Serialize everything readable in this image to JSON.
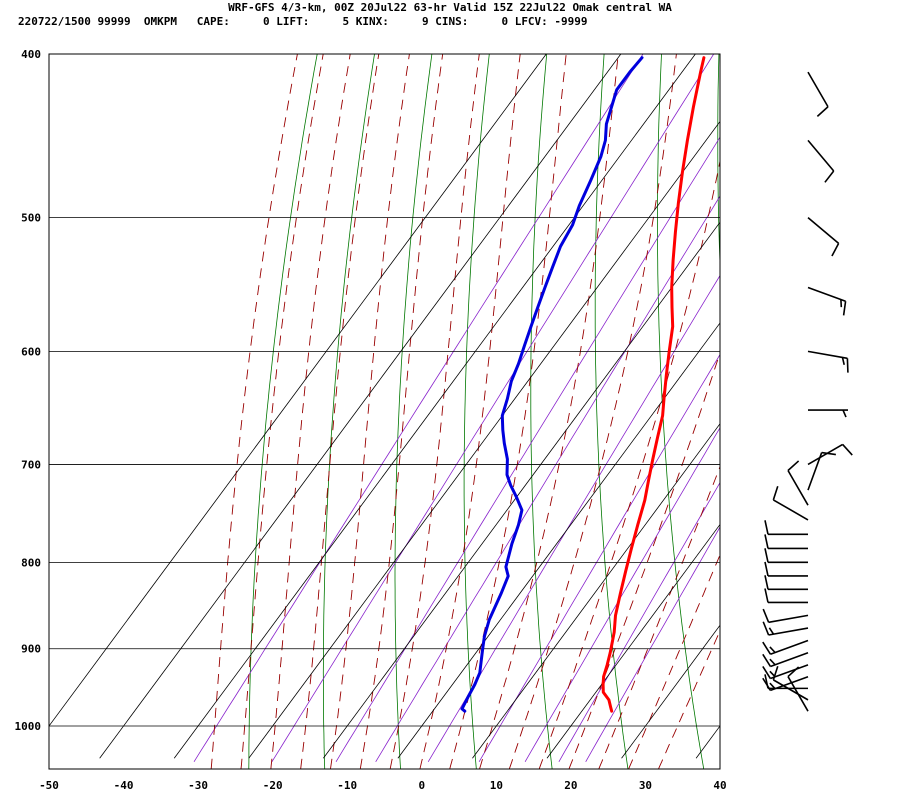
{
  "header": {
    "title": "WRF-GFS 4/3-km, 00Z 20Jul22 63-hr Valid 15Z 22Jul22 Omak central WA",
    "info": "220722/1500 99999  OMKPM   CAPE:     0 LIFT:     5 KINX:     9 CINS:     0 LFCV: -9999"
  },
  "chart_data": {
    "type": "line",
    "title": "WRF-GFS 4/3-km, 00Z 20Jul22 63-hr Valid 15Z 22Jul22 Omak central WA",
    "x_ticks": [
      -50,
      -40,
      -30,
      -20,
      -10,
      0,
      10,
      20,
      30,
      40
    ],
    "y_ticks": [
      400,
      500,
      600,
      700,
      800,
      900,
      1000
    ],
    "xlim": [
      -50,
      40
    ],
    "ylim": [
      1040,
      400
    ],
    "y_scale": "log",
    "grid": true,
    "colors": {
      "temperature": "#ff0000",
      "dewpoint": "#0000dd",
      "dry_adiabat": "#007700",
      "moist_adiabat": "#990000",
      "mixing_ratio": "#8822cc",
      "grid": "#000000",
      "wind": "#000000"
    },
    "series": [
      {
        "key": "temperature",
        "points": [
          [
            24,
            980
          ],
          [
            23.5,
            975
          ],
          [
            22.5,
            965
          ],
          [
            21,
            955
          ],
          [
            20.2,
            945
          ],
          [
            19.5,
            935
          ],
          [
            18.8,
            920
          ],
          [
            18,
            905
          ],
          [
            16.5,
            880
          ],
          [
            15,
            860
          ],
          [
            13.5,
            835
          ],
          [
            12,
            810
          ],
          [
            10.5,
            785
          ],
          [
            9,
            760
          ],
          [
            7.5,
            735
          ],
          [
            6,
            715
          ],
          [
            4.5,
            695
          ],
          [
            3,
            675
          ],
          [
            1.5,
            655
          ],
          [
            0,
            640
          ],
          [
            -2,
            620
          ],
          [
            -4,
            600
          ],
          [
            -6,
            580
          ],
          [
            -8,
            565
          ],
          [
            -10,
            550
          ],
          [
            -12.5,
            530
          ],
          [
            -15,
            510
          ],
          [
            -17.5,
            490
          ],
          [
            -20,
            470
          ],
          [
            -22.5,
            450
          ],
          [
            -25,
            430
          ],
          [
            -27.5,
            410
          ],
          [
            -28.5,
            402
          ]
        ]
      },
      {
        "key": "dewpoint",
        "points": [
          [
            4.3,
            980
          ],
          [
            3.7,
            977
          ],
          [
            3.3,
            960
          ],
          [
            3,
            945
          ],
          [
            2.5,
            930
          ],
          [
            1.5,
            915
          ],
          [
            0.5,
            900
          ],
          [
            -0.5,
            885
          ],
          [
            -1.5,
            865
          ],
          [
            -2.5,
            835
          ],
          [
            -3.3,
            815
          ],
          [
            -4.5,
            805
          ],
          [
            -6,
            780
          ],
          [
            -7,
            760
          ],
          [
            -8,
            745
          ],
          [
            -10,
            732
          ],
          [
            -12,
            720
          ],
          [
            -13.5,
            710
          ],
          [
            -15,
            695
          ],
          [
            -17,
            680
          ],
          [
            -18.5,
            668
          ],
          [
            -20,
            655
          ],
          [
            -21,
            640
          ],
          [
            -22.2,
            625
          ],
          [
            -23,
            610
          ],
          [
            -24,
            595
          ],
          [
            -25,
            580
          ],
          [
            -26,
            565
          ],
          [
            -27,
            550
          ],
          [
            -28,
            535
          ],
          [
            -29,
            520
          ],
          [
            -29.5,
            505
          ],
          [
            -30.5,
            492
          ],
          [
            -31.5,
            475
          ],
          [
            -32.5,
            460
          ],
          [
            -33.5,
            450
          ],
          [
            -35,
            440
          ],
          [
            -37,
            420
          ],
          [
            -37,
            410
          ],
          [
            -36.8,
            402
          ]
        ]
      }
    ],
    "wind_barbs": [
      {
        "p": 980,
        "dir": 330,
        "spd": 10
      },
      {
        "p": 965,
        "dir": 300,
        "spd": 10
      },
      {
        "p": 950,
        "dir": 270,
        "spd": 10
      },
      {
        "p": 935,
        "dir": 250,
        "spd": 15
      },
      {
        "p": 920,
        "dir": 250,
        "spd": 15
      },
      {
        "p": 905,
        "dir": 250,
        "spd": 15
      },
      {
        "p": 890,
        "dir": 250,
        "spd": 15
      },
      {
        "p": 875,
        "dir": 260,
        "spd": 15
      },
      {
        "p": 860,
        "dir": 260,
        "spd": 10
      },
      {
        "p": 845,
        "dir": 270,
        "spd": 10
      },
      {
        "p": 830,
        "dir": 270,
        "spd": 10
      },
      {
        "p": 815,
        "dir": 270,
        "spd": 10
      },
      {
        "p": 800,
        "dir": 270,
        "spd": 10
      },
      {
        "p": 785,
        "dir": 270,
        "spd": 10
      },
      {
        "p": 770,
        "dir": 270,
        "spd": 10
      },
      {
        "p": 755,
        "dir": 300,
        "spd": 10
      },
      {
        "p": 740,
        "dir": 330,
        "spd": 10
      },
      {
        "p": 725,
        "dir": 20,
        "spd": 10
      },
      {
        "p": 700,
        "dir": 60,
        "spd": 10
      },
      {
        "p": 650,
        "dir": 90,
        "spd": 5
      },
      {
        "p": 600,
        "dir": 100,
        "spd": 15
      },
      {
        "p": 550,
        "dir": 110,
        "spd": 15
      },
      {
        "p": 500,
        "dir": 130,
        "spd": 10
      },
      {
        "p": 450,
        "dir": 140,
        "spd": 10
      },
      {
        "p": 410,
        "dir": 150,
        "spd": 10
      }
    ]
  }
}
